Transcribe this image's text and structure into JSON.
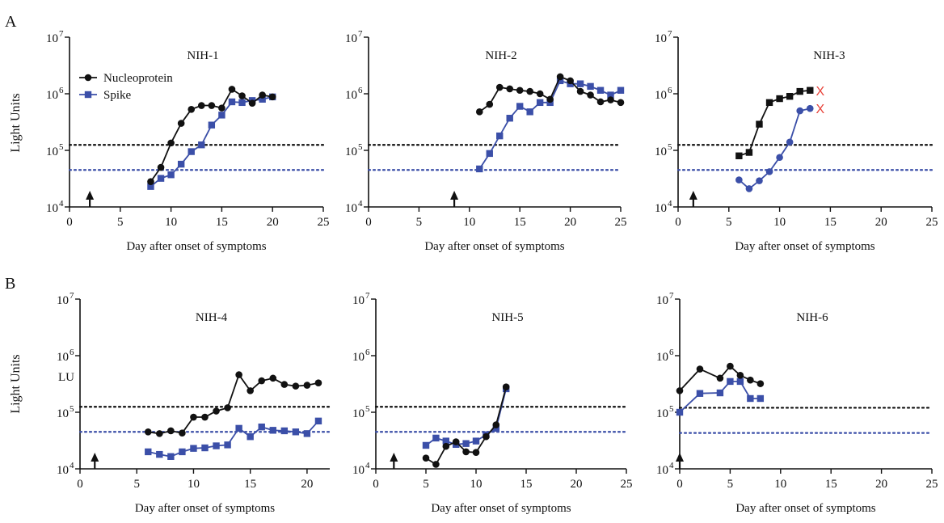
{
  "panel_labels": [
    "A",
    "B"
  ],
  "ylabel": "Light Units",
  "legend": {
    "nucleoprotein": "Nucleoprotein",
    "spike": "Spike"
  },
  "colors": {
    "nucleoprotein": "#111111",
    "spike": "#3b4fa8",
    "death_marker": "#e8433a"
  },
  "chart_data": [
    {
      "type": "line",
      "title": "NIH-1",
      "xlabel": "Day after onset of symptoms",
      "ylabel": "Light Units",
      "xlim": [
        0,
        25
      ],
      "ylim": [
        10000,
        10000000
      ],
      "yscale": "log",
      "xticks": [
        0,
        5,
        10,
        15,
        20,
        25
      ],
      "ytick_exponents": [
        4,
        5,
        6,
        7
      ],
      "arrow_day": 2,
      "thresholds": {
        "nucleoprotein": 125000,
        "spike": 45000
      },
      "legend": true,
      "series": [
        {
          "name": "Nucleoprotein",
          "marker": "circle",
          "x": [
            8,
            9,
            10,
            11,
            12,
            13,
            14,
            15,
            16,
            17,
            18,
            19,
            20
          ],
          "y": [
            28000,
            50000,
            135000,
            300000,
            530000,
            620000,
            620000,
            560000,
            1200000,
            920000,
            680000,
            950000,
            880000
          ]
        },
        {
          "name": "Spike",
          "marker": "square",
          "x": [
            8,
            9,
            10,
            11,
            12,
            13,
            14,
            15,
            16,
            17,
            18,
            19,
            20
          ],
          "y": [
            23000,
            32000,
            37000,
            57000,
            95000,
            125000,
            280000,
            420000,
            720000,
            700000,
            760000,
            800000,
            880000
          ]
        }
      ]
    },
    {
      "type": "line",
      "title": "NIH-2",
      "xlabel": "Day after onset of symptoms",
      "xlim": [
        0,
        25
      ],
      "ylim": [
        10000,
        10000000
      ],
      "yscale": "log",
      "xticks": [
        0,
        5,
        10,
        15,
        20,
        25
      ],
      "ytick_exponents": [
        4,
        5,
        6,
        7
      ],
      "arrow_day": 8.5,
      "thresholds": {
        "nucleoprotein": 125000,
        "spike": 45000
      },
      "series": [
        {
          "name": "Nucleoprotein",
          "marker": "circle",
          "x": [
            11,
            12,
            13,
            14,
            15,
            16,
            17,
            18,
            19,
            20,
            21,
            22,
            23,
            24,
            25
          ],
          "y": [
            480000,
            650000,
            1300000,
            1220000,
            1150000,
            1100000,
            1000000,
            800000,
            2000000,
            1700000,
            1100000,
            950000,
            720000,
            780000,
            700000
          ]
        },
        {
          "name": "Spike",
          "marker": "square",
          "x": [
            11,
            12,
            13,
            14,
            15,
            16,
            17,
            18,
            19,
            20,
            21,
            22,
            23,
            24,
            25
          ],
          "y": [
            47000,
            88000,
            180000,
            370000,
            600000,
            480000,
            700000,
            700000,
            1700000,
            1500000,
            1500000,
            1350000,
            1150000,
            950000,
            1150000
          ]
        }
      ]
    },
    {
      "type": "line",
      "title": "NIH-3",
      "xlabel": "Day after onset of symptoms",
      "xlim": [
        0,
        25
      ],
      "ylim": [
        10000,
        10000000
      ],
      "yscale": "log",
      "xticks": [
        0,
        5,
        10,
        15,
        20,
        25
      ],
      "ytick_exponents": [
        4,
        5,
        6,
        7
      ],
      "arrow_day": 1.5,
      "thresholds": {
        "nucleoprotein": 125000,
        "spike": 45000
      },
      "death_markers": {
        "x": 14,
        "text": "X"
      },
      "series": [
        {
          "name": "Nucleoprotein",
          "marker": "square",
          "x": [
            6,
            7,
            8,
            9,
            10,
            11,
            12,
            13
          ],
          "y": [
            80000,
            92000,
            290000,
            700000,
            820000,
            900000,
            1100000,
            1150000
          ]
        },
        {
          "name": "Spike",
          "marker": "circle",
          "x": [
            6,
            7,
            8,
            9,
            10,
            11,
            12,
            13
          ],
          "y": [
            30000,
            21000,
            29000,
            42000,
            75000,
            140000,
            500000,
            550000
          ]
        }
      ]
    },
    {
      "type": "line",
      "title": "NIH-4",
      "xlabel": "Day after onset of symptoms",
      "ylabel": "Light Units",
      "xlim": [
        0,
        22
      ],
      "ylim": [
        10000,
        10000000
      ],
      "yscale": "log",
      "xticks": [
        0,
        5,
        10,
        15,
        20
      ],
      "ytick_exponents": [
        4,
        5,
        6,
        7
      ],
      "arrow_day": 1.3,
      "thresholds": {
        "nucleoprotein": 125000,
        "spike": 45000
      },
      "annotation": "LU",
      "series": [
        {
          "name": "Nucleoprotein",
          "marker": "circle",
          "x": [
            6,
            7,
            8,
            9,
            10,
            11,
            12,
            13,
            14,
            15,
            16,
            17,
            18,
            19,
            20,
            21
          ],
          "y": [
            45000,
            42000,
            47000,
            43000,
            82000,
            82000,
            105000,
            120000,
            460000,
            240000,
            360000,
            400000,
            310000,
            290000,
            300000,
            330000
          ]
        },
        {
          "name": "Spike",
          "marker": "square",
          "x": [
            6,
            7,
            8,
            9,
            10,
            11,
            12,
            13,
            14,
            15,
            16,
            17,
            18,
            19,
            20,
            21
          ],
          "y": [
            20000,
            18000,
            16500,
            20000,
            23000,
            23500,
            25500,
            26500,
            52000,
            37000,
            55000,
            48000,
            47000,
            45000,
            42000,
            70000
          ]
        }
      ]
    },
    {
      "type": "line",
      "title": "NIH-5",
      "xlabel": "Day after onset of symptoms",
      "xlim": [
        0,
        25
      ],
      "ylim": [
        10000,
        10000000
      ],
      "yscale": "log",
      "xticks": [
        0,
        5,
        10,
        15,
        20,
        25
      ],
      "ytick_exponents": [
        4,
        5,
        6,
        7
      ],
      "arrow_day": 1.8,
      "thresholds": {
        "nucleoprotein": 125000,
        "spike": 45000
      },
      "series": [
        {
          "name": "Nucleoprotein",
          "marker": "circle",
          "x": [
            5,
            6,
            7,
            8,
            9,
            10,
            11,
            12,
            13
          ],
          "y": [
            15500,
            12000,
            25000,
            30000,
            20000,
            19500,
            37000,
            60000,
            280000
          ]
        },
        {
          "name": "Spike",
          "marker": "square",
          "x": [
            5,
            6,
            7,
            8,
            9,
            10,
            11,
            12,
            13
          ],
          "y": [
            26000,
            35000,
            31000,
            27000,
            28000,
            31000,
            40000,
            52000,
            260000
          ]
        }
      ]
    },
    {
      "type": "line",
      "title": "NIH-6",
      "xlabel": "Day after onset of symptoms",
      "xlim": [
        0,
        25
      ],
      "ylim": [
        10000,
        10000000
      ],
      "yscale": "log",
      "xticks": [
        0,
        5,
        10,
        15,
        20,
        25
      ],
      "ytick_exponents": [
        4,
        5,
        6,
        7
      ],
      "arrow_day": 0,
      "thresholds": {
        "nucleoprotein": 120000,
        "spike": 43000
      },
      "series": [
        {
          "name": "Nucleoprotein",
          "marker": "circle",
          "x": [
            0,
            2,
            4,
            5,
            6,
            7,
            8
          ],
          "y": [
            240000,
            580000,
            400000,
            650000,
            450000,
            370000,
            320000
          ]
        },
        {
          "name": "Spike",
          "marker": "square",
          "x": [
            0,
            2,
            4,
            5,
            6,
            7,
            8
          ],
          "y": [
            100000,
            215000,
            220000,
            350000,
            350000,
            175000,
            175000
          ]
        }
      ]
    }
  ]
}
